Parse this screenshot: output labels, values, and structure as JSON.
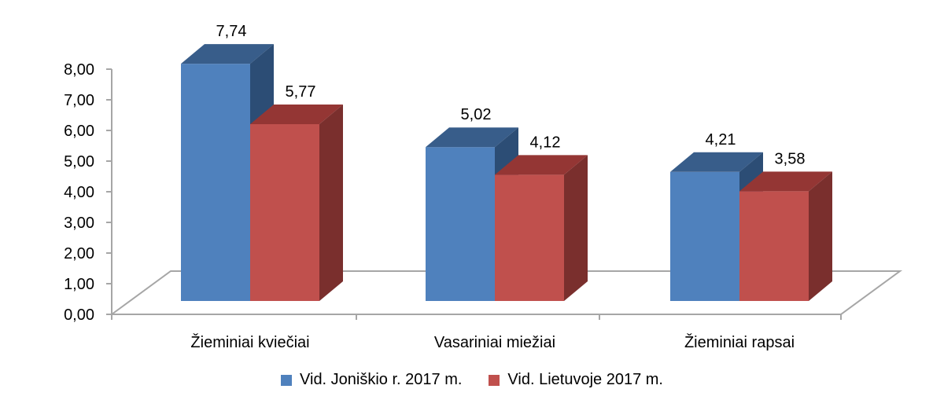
{
  "chart_data": {
    "type": "bar",
    "categories": [
      "Žieminiai kviečiai",
      "Vasariniai miežiai",
      "Žieminiai rapsai"
    ],
    "series": [
      {
        "name": "Vid. Joniškio r. 2017 m.",
        "values": [
          7.74,
          5.02,
          4.21
        ],
        "labels": [
          "7,74",
          "5,02",
          "4,21"
        ],
        "color": "#4f81bd",
        "top_color": "#385d8a",
        "side_color": "#2c4d75"
      },
      {
        "name": "Vid. Lietuvoje 2017 m.",
        "values": [
          5.77,
          4.12,
          3.58
        ],
        "labels": [
          "5,77",
          "4,12",
          "3,58"
        ],
        "color": "#c0504d",
        "top_color": "#943634",
        "side_color": "#7a2f2d"
      }
    ],
    "y_ticks": [
      0,
      1,
      2,
      3,
      4,
      5,
      6,
      7,
      8
    ],
    "y_tick_labels": [
      "0,00",
      "1,00",
      "2,00",
      "3,00",
      "4,00",
      "5,00",
      "6,00",
      "7,00",
      "8,00"
    ],
    "ylim": [
      0,
      8
    ],
    "grid": false,
    "three_d": true,
    "legend_position": "bottom",
    "axis_color": "#a6a6a6"
  }
}
